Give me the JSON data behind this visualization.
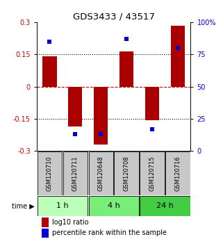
{
  "title": "GDS3433 / 43517",
  "samples": [
    "GSM120710",
    "GSM120711",
    "GSM120648",
    "GSM120708",
    "GSM120715",
    "GSM120716"
  ],
  "log10_ratio": [
    0.14,
    -0.185,
    -0.27,
    0.165,
    -0.155,
    0.285
  ],
  "percentile_rank": [
    85,
    13,
    13,
    87,
    17,
    80
  ],
  "time_groups": [
    {
      "label": "1 h",
      "samples": [
        0,
        1
      ],
      "color": "#bbffbb"
    },
    {
      "label": "4 h",
      "samples": [
        2,
        3
      ],
      "color": "#77ee77"
    },
    {
      "label": "24 h",
      "samples": [
        4,
        5
      ],
      "color": "#44cc44"
    }
  ],
  "bar_color": "#aa0000",
  "dot_color": "#0000cc",
  "ylim_left": [
    -0.3,
    0.3
  ],
  "ylim_right": [
    0,
    100
  ],
  "yticks_left": [
    -0.3,
    -0.15,
    0,
    0.15,
    0.3
  ],
  "ytick_labels_left": [
    "-0.3",
    "-0.15",
    "0",
    "0.15",
    "0.3"
  ],
  "yticks_right": [
    0,
    25,
    50,
    75,
    100
  ],
  "ytick_labels_right": [
    "0",
    "25",
    "50",
    "75",
    "100%"
  ],
  "hlines_dotted": [
    -0.15,
    0.15
  ],
  "hline_zero_color": "#cc0000",
  "hline_other_color": "#000000",
  "bg_color": "#ffffff",
  "sample_box_color": "#c8c8c8",
  "legend_log10_label": "log10 ratio",
  "legend_pct_label": "percentile rank within the sample"
}
